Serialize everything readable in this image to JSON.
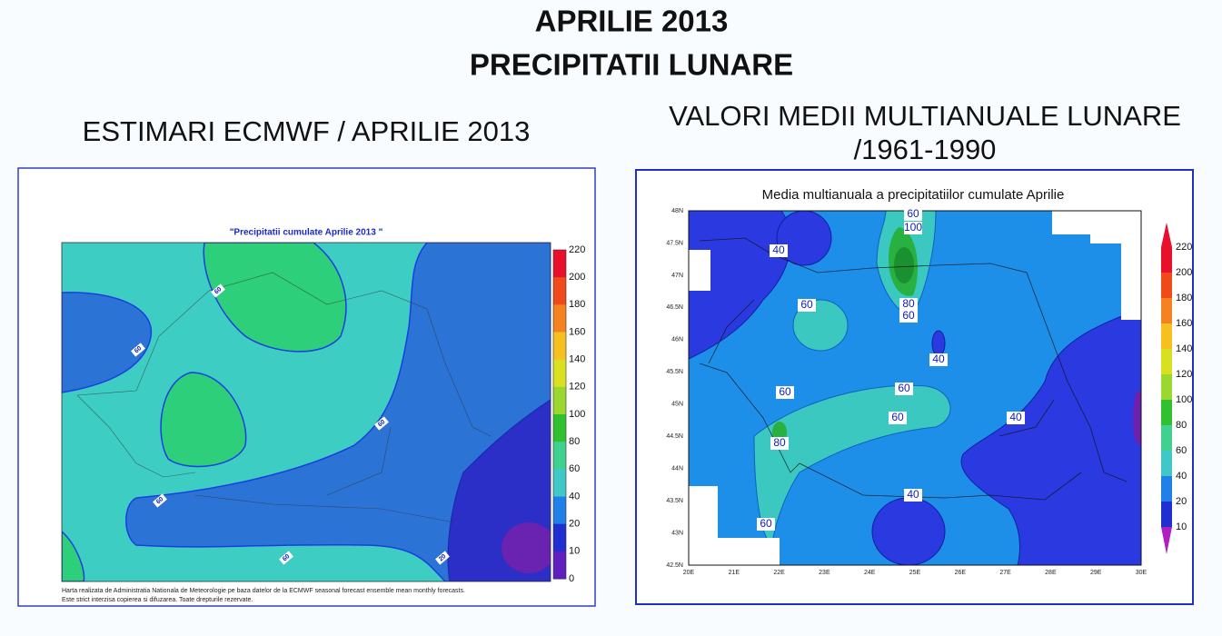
{
  "header": {
    "title_lines": [
      "APRILIE 2013",
      "PRECIPITATII LUNARE"
    ]
  },
  "left": {
    "heading": "ESTIMARI ECMWF / APRILIE 2013",
    "map_title": "\"Precipitatii cumulate Aprilie 2013 \"",
    "colorbar_labels": [
      220,
      200,
      180,
      160,
      140,
      120,
      100,
      80,
      60,
      40,
      20,
      10,
      0
    ],
    "contour_labels": [
      60,
      60,
      60,
      60,
      60,
      20
    ],
    "footnote_lines": [
      "Harta realizata de Administratia Nationala de Meteorologie pe baza datelor de la ECMWF seasonal forecast ensemble mean monthly forecasts.",
      "Este strict interzisa copierea si difuzarea. Toate drepturile rezervate."
    ]
  },
  "right": {
    "heading_lines": [
      "VALORI MEDII MULTIANUALE LUNARE",
      "/1961-1990"
    ],
    "map_title": "Media multianuala a precipitatiilor cumulate Aprilie",
    "lat_labels": [
      "48N",
      "47.5N",
      "47N",
      "46.5N",
      "46N",
      "45.5N",
      "45N",
      "44.5N",
      "44N",
      "43.5N",
      "43N",
      "42.5N"
    ],
    "lon_labels": [
      "20E",
      "21E",
      "22E",
      "23E",
      "24E",
      "25E",
      "26E",
      "27E",
      "28E",
      "29E",
      "30E"
    ],
    "colorbar_labels": [
      220,
      200,
      180,
      160,
      140,
      120,
      100,
      80,
      60,
      40,
      20,
      10
    ],
    "contour_labels": [
      60,
      100,
      40,
      60,
      80,
      60,
      40,
      60,
      60,
      60,
      80,
      40,
      40,
      60
    ]
  }
}
